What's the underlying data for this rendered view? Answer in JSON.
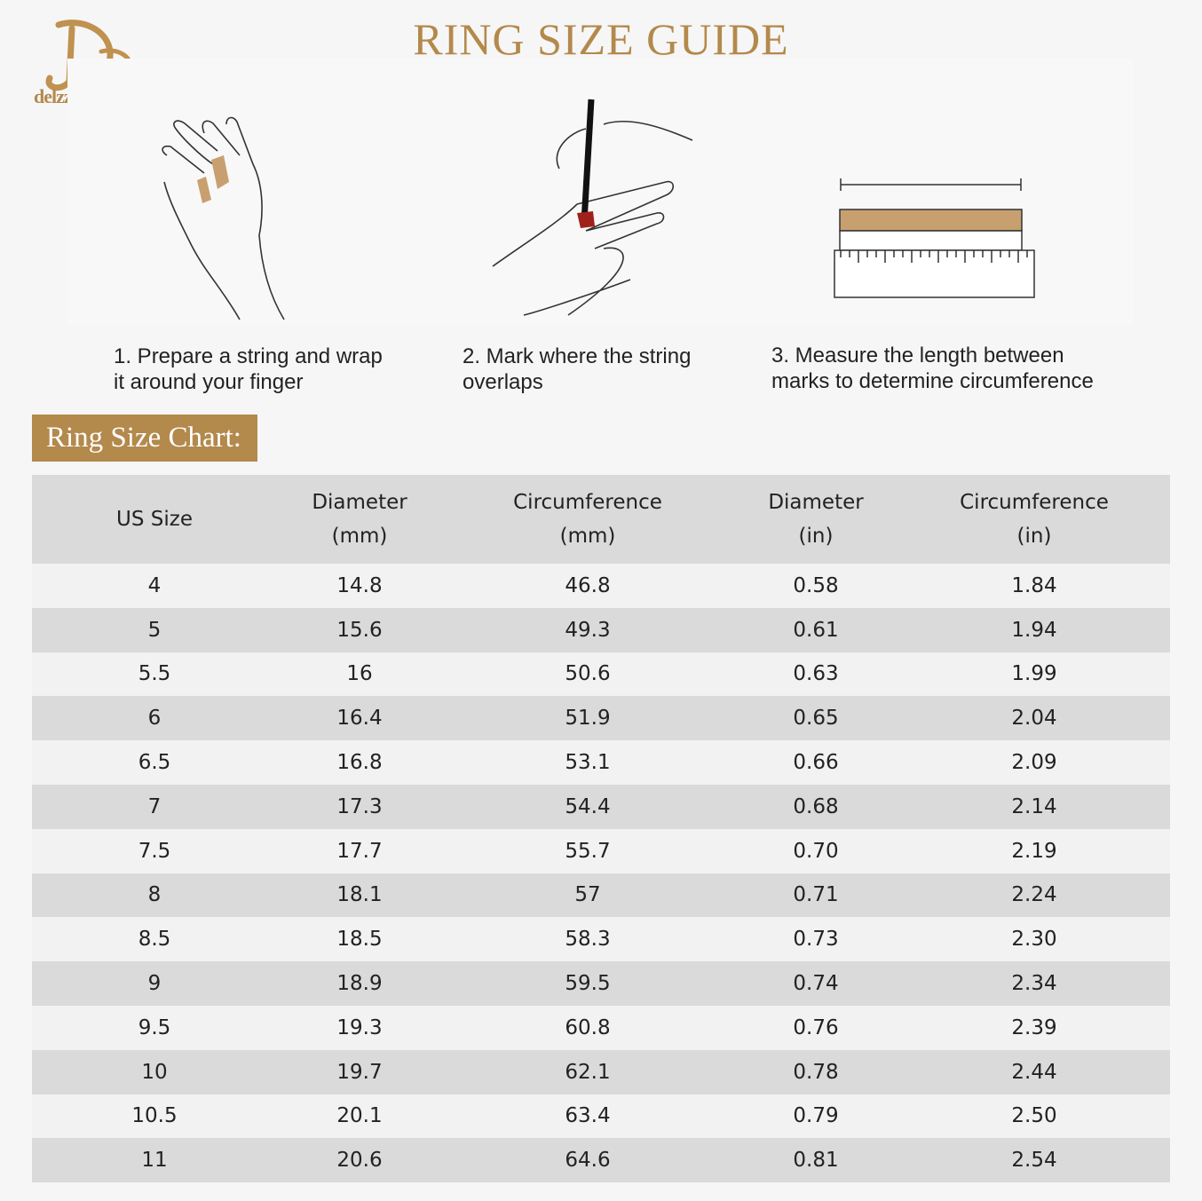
{
  "brand": {
    "name": "delzzad jewelry",
    "monogram": "DD",
    "color": "#b3894c"
  },
  "title": "RING SIZE GUIDE",
  "steps": [
    {
      "text_line1": "1. Prepare a string and wrap",
      "text_line2": "it around your finger"
    },
    {
      "text_line1": "2. Mark where the string",
      "text_line2": "overlaps"
    },
    {
      "text_line1": "3. Measure the length between",
      "text_line2": "marks to determine circumference"
    }
  ],
  "chart_label": "Ring Size Chart:",
  "table": {
    "headers": [
      {
        "line1": "US Size",
        "line2": ""
      },
      {
        "line1": "Diameter",
        "line2": "(mm)"
      },
      {
        "line1": "Circumference",
        "line2": "(mm)"
      },
      {
        "line1": "Diameter",
        "line2": "(in)"
      },
      {
        "line1": "Circumference",
        "line2": "(in)"
      }
    ],
    "rows": [
      [
        "4",
        "14.8",
        "46.8",
        "0.58",
        "1.84"
      ],
      [
        "5",
        "15.6",
        "49.3",
        "0.61",
        "1.94"
      ],
      [
        "5.5",
        "16",
        "50.6",
        "0.63",
        "1.99"
      ],
      [
        "6",
        "16.4",
        "51.9",
        "0.65",
        "2.04"
      ],
      [
        "6.5",
        "16.8",
        "53.1",
        "0.66",
        "2.09"
      ],
      [
        "7",
        "17.3",
        "54.4",
        "0.68",
        "2.14"
      ],
      [
        "7.5",
        "17.7",
        "55.7",
        "0.70",
        "2.19"
      ],
      [
        "8",
        "18.1",
        "57",
        "0.71",
        "2.24"
      ],
      [
        "8.5",
        "18.5",
        "58.3",
        "0.73",
        "2.30"
      ],
      [
        "9",
        "18.9",
        "59.5",
        "0.74",
        "2.34"
      ],
      [
        "9.5",
        "19.3",
        "60.8",
        "0.76",
        "2.39"
      ],
      [
        "10",
        "19.7",
        "62.1",
        "0.78",
        "2.44"
      ],
      [
        "10.5",
        "20.1",
        "63.4",
        "0.79",
        "2.50"
      ],
      [
        "11",
        "20.6",
        "64.6",
        "0.81",
        "2.54"
      ]
    ]
  }
}
